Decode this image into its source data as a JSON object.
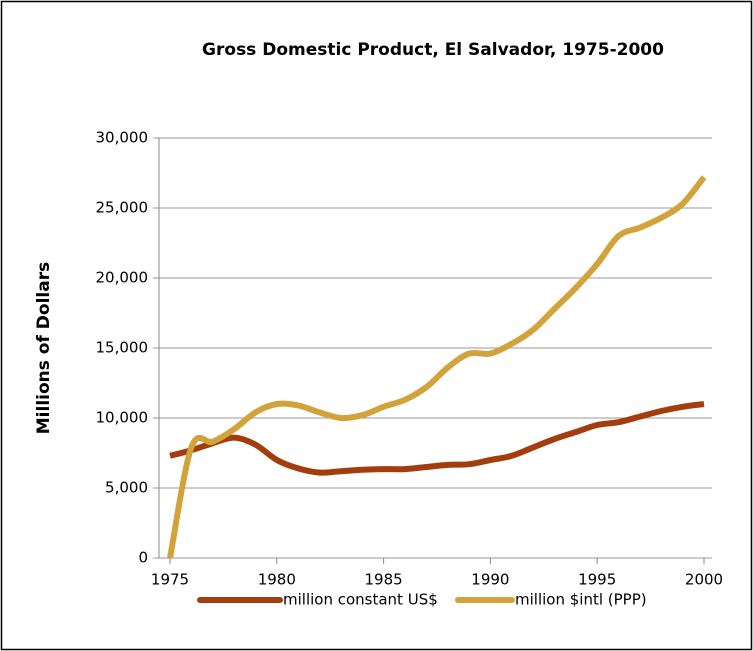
{
  "chart_data": {
    "type": "line",
    "title": "Gross Domestic Product, El Salvador, 1975-2000",
    "y_label": "Millions of Dollars",
    "x": [
      1975,
      1976,
      1977,
      1978,
      1979,
      1980,
      1981,
      1982,
      1983,
      1984,
      1985,
      1986,
      1987,
      1988,
      1989,
      1990,
      1991,
      1992,
      1993,
      1994,
      1995,
      1996,
      1997,
      1998,
      1999,
      2000
    ],
    "series": [
      {
        "name": "million constant US$",
        "color": "#a33d0e",
        "values": [
          7300,
          7700,
          8200,
          8600,
          8100,
          7000,
          6400,
          6100,
          6200,
          6300,
          6350,
          6350,
          6500,
          6650,
          6700,
          7000,
          7300,
          7900,
          8500,
          9000,
          9500,
          9700,
          10100,
          10500,
          10800,
          11000
        ]
      },
      {
        "name": "million $intl (PPP)",
        "color": "#d4a23a",
        "values": [
          0,
          7900,
          8300,
          9200,
          10400,
          11000,
          10900,
          10400,
          10000,
          10200,
          10800,
          11300,
          12200,
          13600,
          14600,
          14600,
          15300,
          16300,
          17800,
          19300,
          21000,
          23000,
          23600,
          24300,
          25300,
          27200
        ]
      }
    ],
    "xlim": [
      1975,
      2000
    ],
    "xticks": [
      1975,
      1980,
      1985,
      1990,
      1995,
      2000
    ],
    "ylim": [
      0,
      30000
    ],
    "yticks": [
      0,
      {
        "value": 5000,
        "label": "5,000"
      },
      {
        "value": 10000,
        "label": "10,000"
      },
      {
        "value": 15000,
        "label": "15,000"
      },
      {
        "value": 20000,
        "label": "20,000"
      },
      {
        "value": 25000,
        "label": "25,000"
      },
      {
        "value": 30000,
        "label": "30,000"
      }
    ],
    "grid": true,
    "legend": "bottom"
  }
}
